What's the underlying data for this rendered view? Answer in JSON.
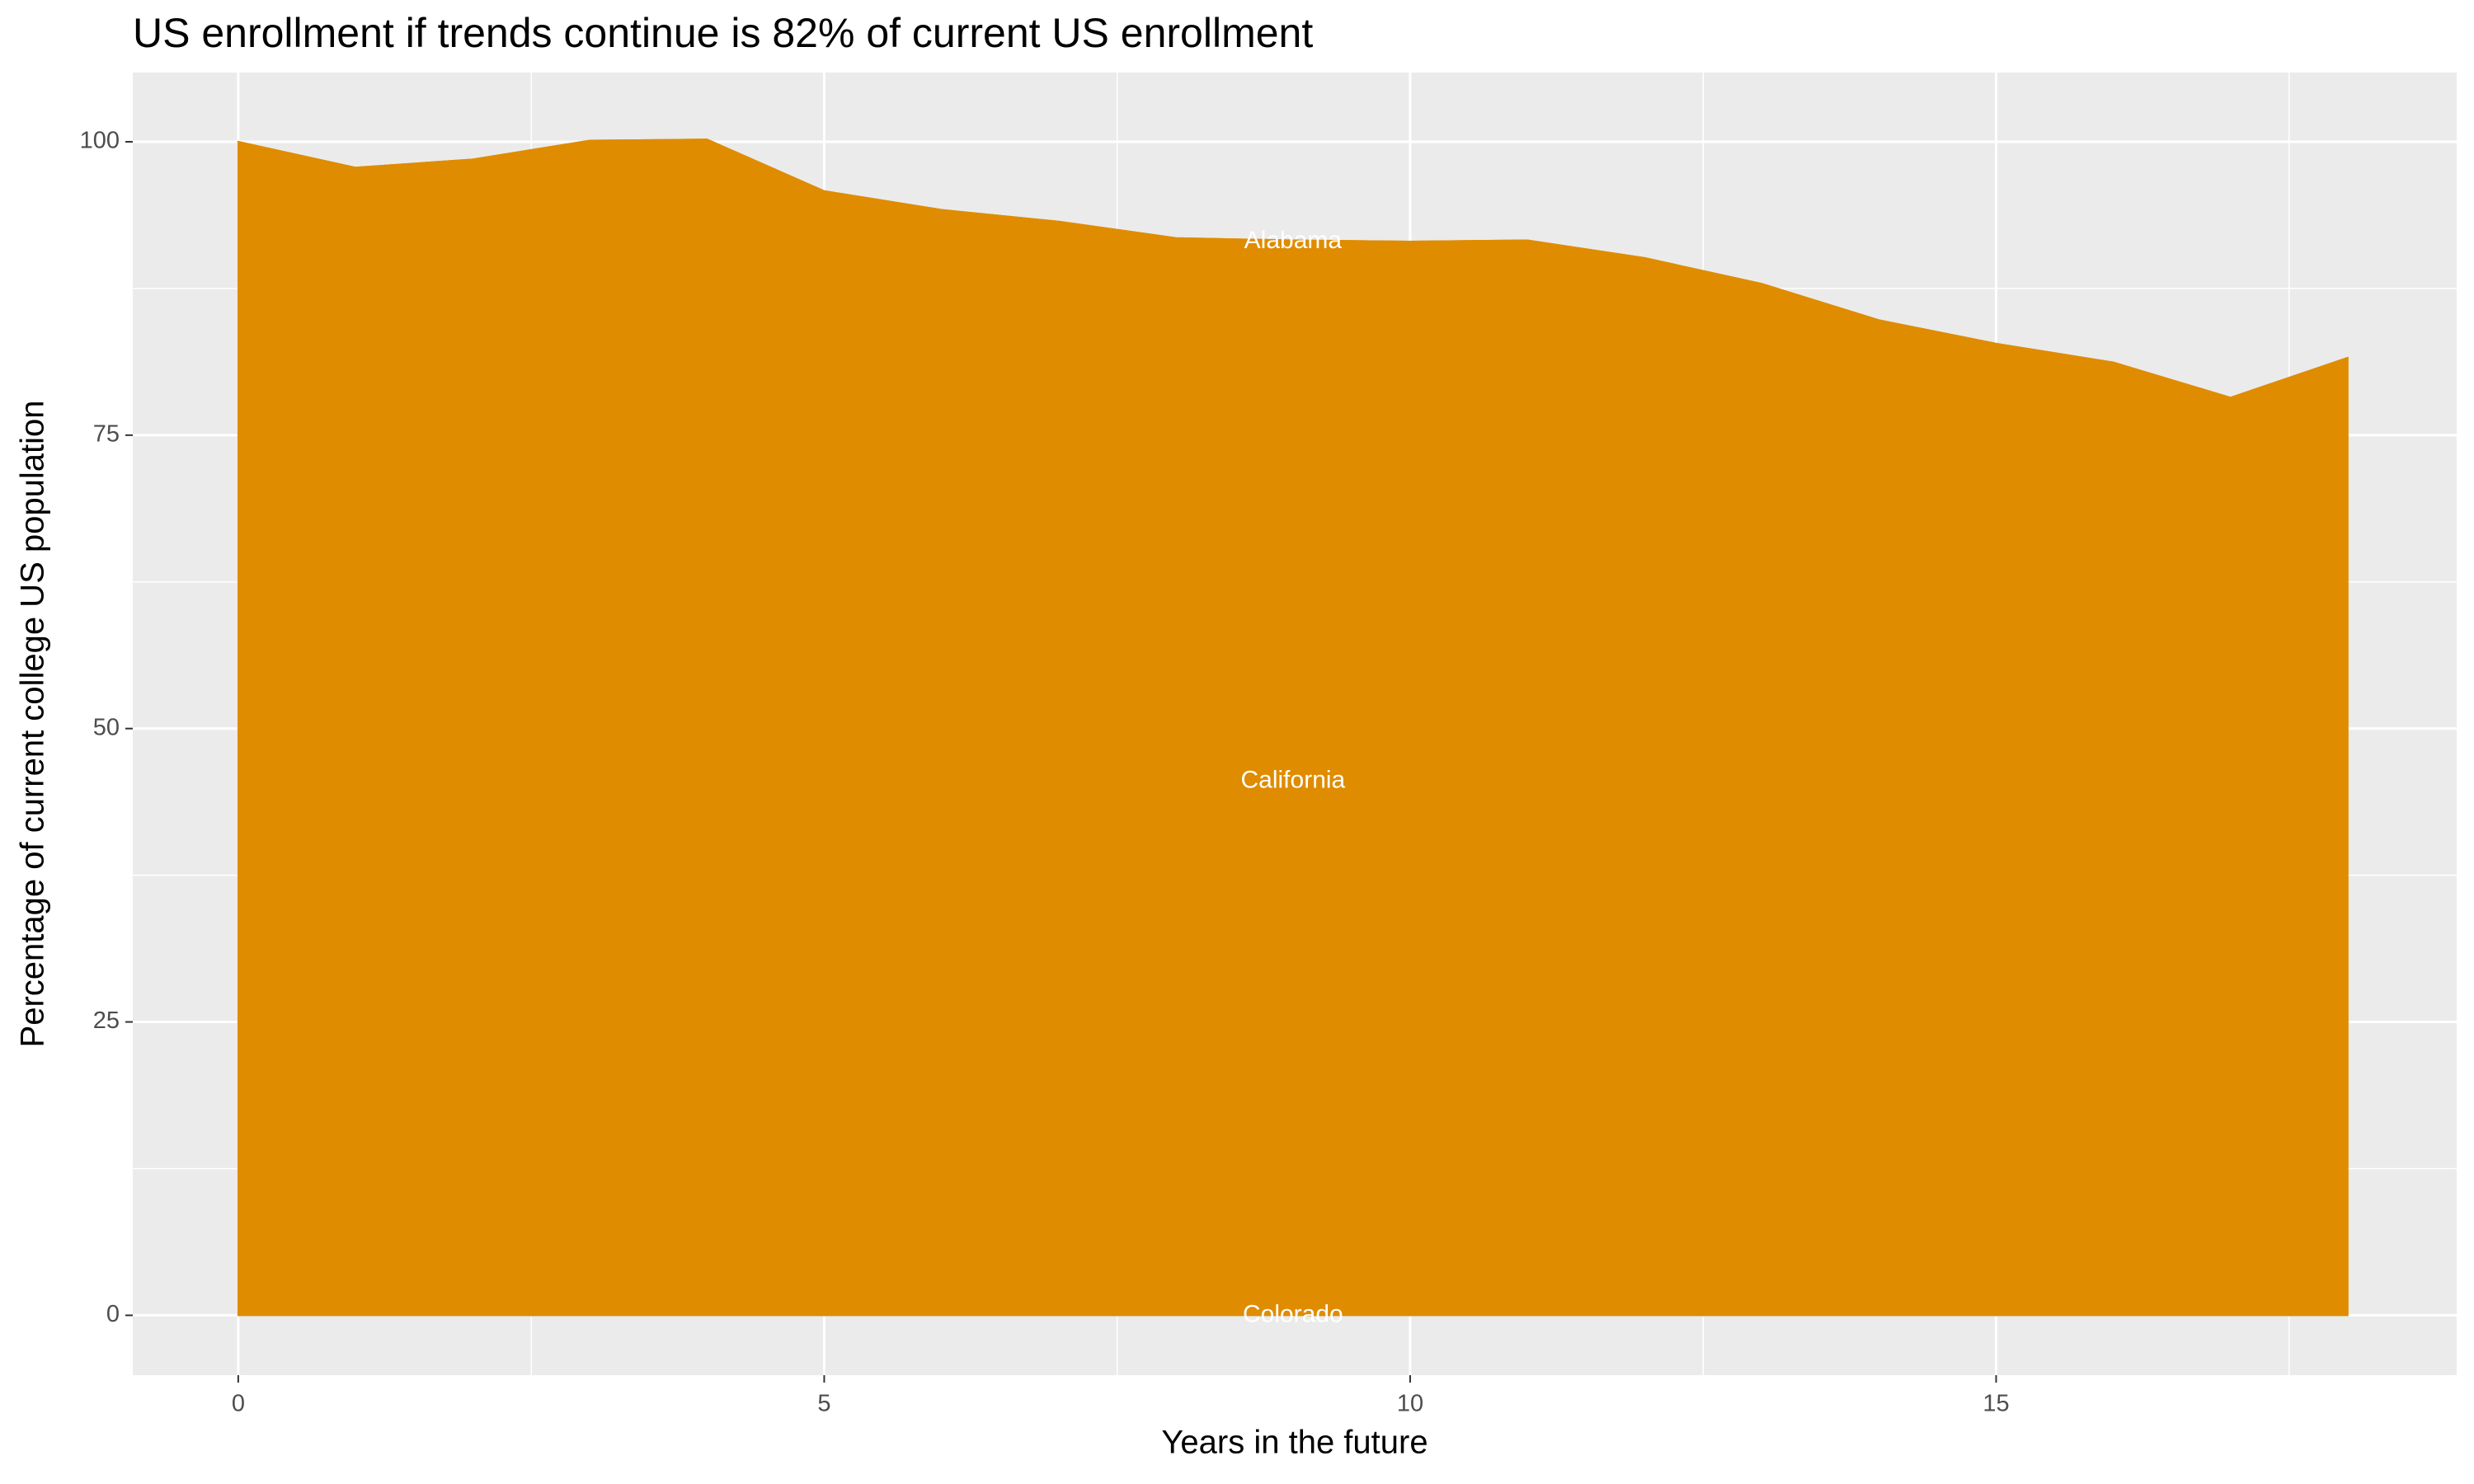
{
  "chart_data": {
    "type": "area",
    "stacked": true,
    "title": "US enrollment if trends continue is 82% of current US enrollment",
    "x_label": "Years in the future",
    "y_label": "Percentage of current college US population",
    "x": [
      0,
      1,
      2,
      3,
      4,
      5,
      6,
      7,
      8,
      9,
      10,
      11,
      12,
      13,
      14,
      15,
      16,
      17,
      18
    ],
    "series": [
      {
        "name": "Colorado",
        "color": "#5aa9c9",
        "values": [
          0,
          0,
          0,
          0,
          0,
          0,
          0,
          0,
          0,
          0,
          0,
          0,
          0,
          0,
          0,
          0,
          0,
          0,
          0
        ]
      },
      {
        "name": "California",
        "color": "#df8c00",
        "values": [
          100,
          97.8,
          98.5,
          100.1,
          100.2,
          95.8,
          94.2,
          93.2,
          91.8,
          91.6,
          91.5,
          91.6,
          90.1,
          87.9,
          84.8,
          82.8,
          81.2,
          78.2,
          81.6
        ]
      },
      {
        "name": "Alabama",
        "color": "#df8c00",
        "values": [
          0,
          0,
          0,
          0,
          0,
          0,
          0,
          0,
          0,
          0,
          0,
          0,
          0,
          0,
          0,
          0,
          0,
          0,
          0
        ]
      }
    ],
    "annotations": [
      {
        "text": "Alabama",
        "x": 9,
        "y": 91.5
      },
      {
        "text": "California",
        "x": 9,
        "y": 45.5
      },
      {
        "text": "Colorado",
        "x": 9,
        "y": 0
      }
    ],
    "xlim": [
      -0.9,
      18.93
    ],
    "xticks": [
      0,
      5,
      10,
      15
    ],
    "ylim": [
      -5.1,
      105.9
    ],
    "yticks": [
      0,
      25,
      50,
      75,
      100
    ],
    "grid": true
  }
}
